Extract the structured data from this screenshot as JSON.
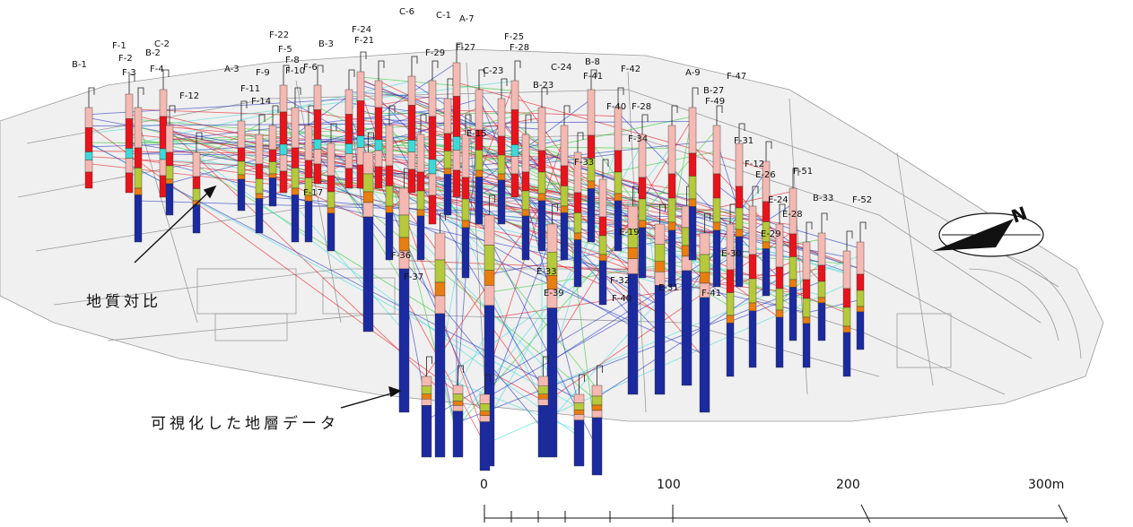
{
  "annotations": {
    "geology_correlation": "地質対比",
    "visualized_strata": "可視化した地層データ"
  },
  "scale_bar": {
    "ticks": [
      "0",
      "100",
      "200",
      "300m"
    ]
  },
  "north_arrow": {
    "letter": "N"
  },
  "boreholes": [
    {
      "label": "B-1"
    },
    {
      "label": "F-1"
    },
    {
      "label": "F-2"
    },
    {
      "label": "C-2"
    },
    {
      "label": "B-2"
    },
    {
      "label": "F-3"
    },
    {
      "label": "F-4"
    },
    {
      "label": "A-3"
    },
    {
      "label": "F-9"
    },
    {
      "label": "F-12"
    },
    {
      "label": "F-11"
    },
    {
      "label": "F-14"
    },
    {
      "label": "F-22"
    },
    {
      "label": "F-5"
    },
    {
      "label": "F-8"
    },
    {
      "label": "F-10"
    },
    {
      "label": "F-6"
    },
    {
      "label": "B-3"
    },
    {
      "label": "F-24"
    },
    {
      "label": "F-21"
    },
    {
      "label": "C-6"
    },
    {
      "label": "C-1"
    },
    {
      "label": "A-7"
    },
    {
      "label": "F-29"
    },
    {
      "label": "F-27"
    },
    {
      "label": "F-25"
    },
    {
      "label": "F-28"
    },
    {
      "label": "C-24"
    },
    {
      "label": "B-8"
    },
    {
      "label": "F-42"
    },
    {
      "label": "F-41"
    },
    {
      "label": "B-23"
    },
    {
      "label": "C-23"
    },
    {
      "label": "F-40"
    },
    {
      "label": "F-28"
    },
    {
      "label": "A-9"
    },
    {
      "label": "F-47"
    },
    {
      "label": "B-27"
    },
    {
      "label": "F-49"
    },
    {
      "label": "F-31"
    },
    {
      "label": "F-12"
    },
    {
      "label": "F-51"
    },
    {
      "label": "E-26"
    },
    {
      "label": "E-24"
    },
    {
      "label": "B-33"
    },
    {
      "label": "F-52"
    },
    {
      "label": "E-28"
    },
    {
      "label": "E-29"
    },
    {
      "label": "E-19"
    },
    {
      "label": "E-30"
    },
    {
      "label": "F-36"
    },
    {
      "label": "F-37"
    },
    {
      "label": "E-33"
    },
    {
      "label": "E-39"
    },
    {
      "label": "F-32"
    },
    {
      "label": "F-40"
    },
    {
      "label": "E-31"
    },
    {
      "label": "F-41"
    },
    {
      "label": "F-34"
    },
    {
      "label": "F-33"
    },
    {
      "label": "E-15"
    },
    {
      "label": "F-17"
    }
  ],
  "legend_colors": {
    "topsoil": "#f4b9b2",
    "clay": "#e8141c",
    "sand": "#b5c93a",
    "gravel": "#e87d10",
    "silt": "#3fd8d8",
    "bedrock": "#1c2aa0"
  }
}
